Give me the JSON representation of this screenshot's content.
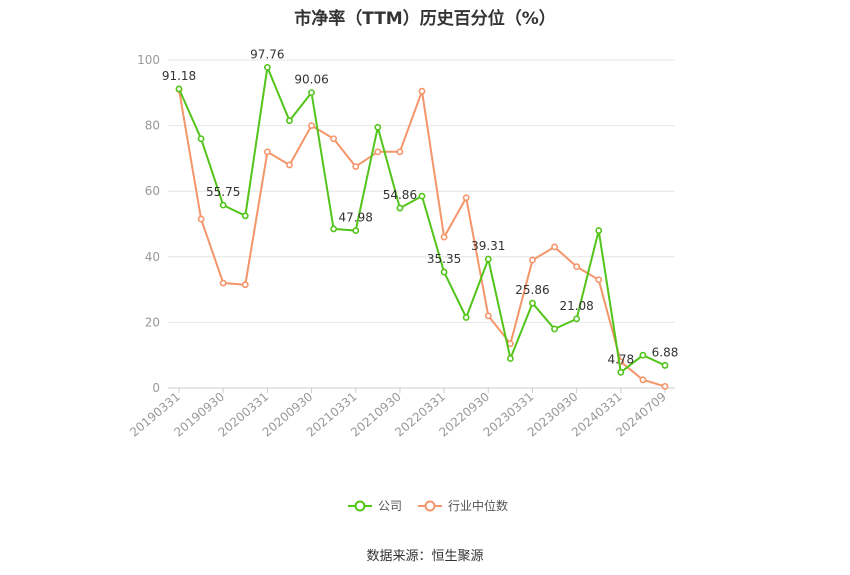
{
  "chart_data": {
    "type": "line",
    "title": "市净率（TTM）历史百分位（%）",
    "ylim": [
      0,
      100
    ],
    "yticks": [
      0,
      20,
      40,
      60,
      80,
      100
    ],
    "x": [
      "20190331",
      "20190630",
      "20190930",
      "20191231",
      "20200331",
      "20200630",
      "20200930",
      "20201231",
      "20210331",
      "20210630",
      "20210930",
      "20211231",
      "20220331",
      "20220630",
      "20220930",
      "20221231",
      "20230331",
      "20230630",
      "20230930",
      "20231231",
      "20240331",
      "20240630",
      "20240709"
    ],
    "x_tick_labels": [
      "20190331",
      "20190930",
      "20200331",
      "20200930",
      "20210331",
      "20210930",
      "20220331",
      "20220930",
      "20230331",
      "20230930",
      "20240331",
      "20240709"
    ],
    "grid": true,
    "legend_position": "bottom",
    "series": [
      {
        "name": "公司",
        "color": "#52c41a",
        "values": [
          91.18,
          76.0,
          55.75,
          52.5,
          97.76,
          81.5,
          90.06,
          48.5,
          47.98,
          79.5,
          54.86,
          58.5,
          35.35,
          21.5,
          39.31,
          9.0,
          25.86,
          18.0,
          21.08,
          48.0,
          4.78,
          10.0,
          6.88
        ],
        "labels": {
          "0": "91.18",
          "2": "55.75",
          "4": "97.76",
          "6": "90.06",
          "8": "47.98",
          "10": "54.86",
          "12": "35.35",
          "14": "39.31",
          "16": "25.86",
          "18": "21.08",
          "20": "4.78",
          "22": "6.88"
        }
      },
      {
        "name": "行业中位数",
        "color": "#f4956a",
        "values": [
          91.0,
          51.5,
          32.0,
          31.5,
          72.0,
          68.0,
          80.0,
          76.0,
          67.5,
          72.0,
          72.0,
          90.5,
          46.0,
          58.0,
          22.0,
          13.5,
          39.0,
          43.0,
          37.0,
          33.0,
          8.0,
          2.5,
          0.5
        ]
      }
    ]
  },
  "source": "数据来源：恒生聚源"
}
